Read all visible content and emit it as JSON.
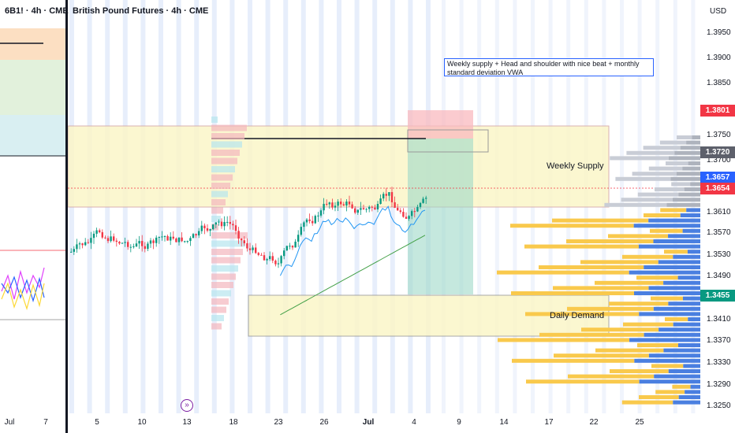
{
  "left_panel": {
    "title": "6B1! · 4h · CME",
    "date_labels": [
      "Jul",
      "7"
    ]
  },
  "main_panel": {
    "title": "British Pound Futures · 4h · CME",
    "currency": "USD",
    "annotation": "Weekly supply + Head and shoulder with nice beat + monthly standard deviation VWA",
    "zones": {
      "weekly_supply": "Weekly Supply",
      "daily_demand": "Daily Demand"
    },
    "price_axis": [
      "1.3950",
      "1.3900",
      "1.3850",
      "1.3750",
      "1.3700",
      "1.3610",
      "1.3570",
      "1.3530",
      "1.3490",
      "1.3410",
      "1.3370",
      "1.3330",
      "1.3290",
      "1.3250"
    ],
    "price_tags": [
      {
        "label": "1.3801",
        "color": "#f23645"
      },
      {
        "label": "1.3720",
        "color": "#5d606b"
      },
      {
        "label": "1.3657",
        "color": "#2962ff"
      },
      {
        "label": "1.3654",
        "color": "#f23645"
      },
      {
        "label": "1.3455",
        "color": "#089981"
      }
    ],
    "date_axis": [
      "5",
      "10",
      "13",
      "18",
      "23",
      "26",
      "Jul",
      "4",
      "9",
      "14",
      "17",
      "22",
      "25"
    ]
  },
  "colors": {
    "up": "#089981",
    "down": "#f23645",
    "supply_fill": "#fbf6c8",
    "profile_yellow": "#f9c94c",
    "profile_blue": "#4a7fe0"
  },
  "icons": {
    "replay": "replay-icon"
  }
}
